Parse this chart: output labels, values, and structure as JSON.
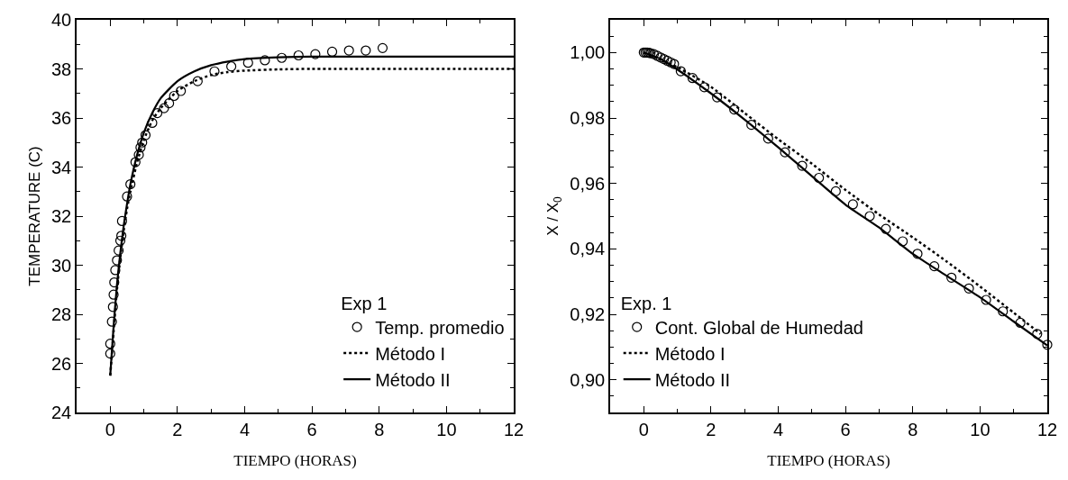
{
  "chart_data": [
    {
      "type": "scatter",
      "xlabel": "TIEMPO (HORAS)",
      "ylabel": "TEMPERATURE (C)",
      "legend_title": "Exp 1",
      "legend": "bottom right",
      "xlim": [
        -1,
        12
      ],
      "ylim": [
        24,
        40
      ],
      "xticks": [
        0,
        2,
        4,
        6,
        8,
        10,
        12
      ],
      "yticks": [
        24,
        26,
        28,
        30,
        32,
        34,
        36,
        38,
        40
      ],
      "series": [
        {
          "name": "Temp. promedio",
          "type": "scatter",
          "marker": "circle",
          "color": "#000000",
          "x": [
            0,
            0,
            0.05,
            0.08,
            0.1,
            0.12,
            0.15,
            0.2,
            0.25,
            0.3,
            0.33,
            0.35,
            0.5,
            0.6,
            0.75,
            0.85,
            0.9,
            0.95,
            1.05,
            1.25,
            1.4,
            1.6,
            1.75,
            1.9,
            2.1,
            2.6,
            3.1,
            3.6,
            4.1,
            4.6,
            5.1,
            5.6,
            6.1,
            6.6,
            7.1,
            7.6,
            8.1
          ],
          "values": [
            26.4,
            26.8,
            27.7,
            28.3,
            28.8,
            29.3,
            29.8,
            30.2,
            30.6,
            31.0,
            31.2,
            31.8,
            32.8,
            33.3,
            34.2,
            34.5,
            34.8,
            35.0,
            35.3,
            35.8,
            36.2,
            36.4,
            36.6,
            36.9,
            37.1,
            37.5,
            37.9,
            38.1,
            38.25,
            38.35,
            38.45,
            38.55,
            38.6,
            38.7,
            38.75,
            38.75,
            38.85
          ]
        },
        {
          "name": "Método I",
          "type": "line",
          "line_style": "dotted",
          "color": "#000000",
          "x": [
            0,
            0.1,
            0.2,
            0.3,
            0.4,
            0.5,
            0.6,
            0.8,
            1,
            1.25,
            1.5,
            2,
            2.5,
            3,
            3.5,
            4,
            5,
            6,
            12
          ],
          "values": [
            25.5,
            27.3,
            29.0,
            30.3,
            31.4,
            32.3,
            33.0,
            34.2,
            35.1,
            35.9,
            36.4,
            37.1,
            37.5,
            37.75,
            37.87,
            37.93,
            37.98,
            38.0,
            38.0
          ]
        },
        {
          "name": "Método II",
          "type": "line",
          "line_style": "solid",
          "color": "#000000",
          "x": [
            0,
            0.1,
            0.2,
            0.3,
            0.4,
            0.5,
            0.6,
            0.8,
            1,
            1.25,
            1.5,
            2,
            2.5,
            3,
            3.5,
            4,
            5,
            6,
            8,
            12
          ],
          "values": [
            25.5,
            27.5,
            29.2,
            30.5,
            31.6,
            32.5,
            33.3,
            34.5,
            35.4,
            36.2,
            36.8,
            37.5,
            37.9,
            38.15,
            38.3,
            38.4,
            38.47,
            38.5,
            38.5,
            38.5
          ]
        }
      ]
    },
    {
      "type": "scatter",
      "xlabel": "TIEMPO (HORAS)",
      "ylabel": "X / X$_{0}$",
      "legend_title": "Exp. 1",
      "legend": "bottom left",
      "xlim": [
        -1,
        12
      ],
      "ylim": [
        0.89,
        1.01
      ],
      "xticks": [
        0,
        2,
        4,
        6,
        8,
        10,
        12
      ],
      "yticks": [
        {
          "value": 0.9,
          "label": "0,90"
        },
        {
          "value": 0.92,
          "label": "0,92"
        },
        {
          "value": 0.94,
          "label": "0,94"
        },
        {
          "value": 0.96,
          "label": "0,96"
        },
        {
          "value": 0.98,
          "label": "0,98"
        },
        {
          "value": 1.0,
          "label": "1,00"
        }
      ],
      "series": [
        {
          "name": "Cont. Global de Humedad",
          "type": "scatter",
          "marker": "circle",
          "color": "#000000",
          "x": [
            0,
            0.05,
            0.1,
            0.15,
            0.2,
            0.3,
            0.4,
            0.5,
            0.6,
            0.7,
            0.8,
            0.9,
            1.1,
            1.45,
            1.8,
            2.18,
            2.69,
            3.2,
            3.7,
            4.2,
            4.71,
            5.21,
            5.71,
            6.22,
            6.72,
            7.2,
            7.7,
            8.14,
            8.64,
            9.15,
            9.67,
            10.18,
            10.68,
            11.2,
            11.7,
            12
          ],
          "values": [
            1.0,
            1.0,
            1.0,
            0.9999,
            0.9998,
            0.9995,
            0.999,
            0.9985,
            0.998,
            0.9975,
            0.997,
            0.9965,
            0.9943,
            0.9922,
            0.9894,
            0.9863,
            0.9826,
            0.9779,
            0.9737,
            0.9695,
            0.9654,
            0.9617,
            0.9576,
            0.9536,
            0.95,
            0.9461,
            0.9423,
            0.9385,
            0.9347,
            0.9312,
            0.9279,
            0.9244,
            0.9209,
            0.9174,
            0.914,
            0.9107
          ]
        },
        {
          "name": "Método I",
          "type": "line",
          "line_style": "dotted",
          "color": "#000000",
          "x": [
            0,
            1,
            2,
            3,
            4,
            5,
            6,
            7,
            8,
            9,
            10,
            11,
            11.8
          ],
          "values": [
            1.0,
            0.9955,
            0.9895,
            0.9815,
            0.9735,
            0.966,
            0.958,
            0.9505,
            0.9435,
            0.9362,
            0.9285,
            0.9205,
            0.914
          ]
        },
        {
          "name": "Método II",
          "type": "line",
          "line_style": "solid",
          "color": "#000000",
          "x": [
            0,
            0.5,
            1,
            2,
            3,
            4,
            5,
            6,
            7,
            8,
            9,
            10,
            11,
            12
          ],
          "values": [
            1.0,
            0.998,
            0.9948,
            0.9875,
            0.9795,
            0.971,
            0.9622,
            0.9535,
            0.9465,
            0.9385,
            0.9318,
            0.9252,
            0.9178,
            0.9105
          ]
        }
      ]
    }
  ]
}
